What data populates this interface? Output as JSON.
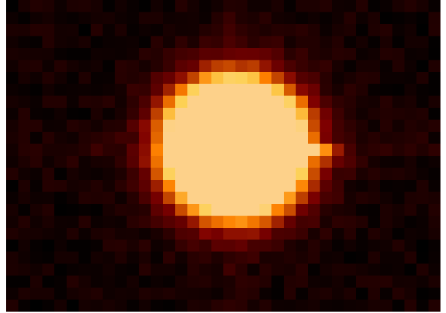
{
  "image": {
    "kind": "pixelated-heatmap",
    "colormap": "afmhot",
    "palette": {
      "background": "#ffffff",
      "dark": "#0d0402",
      "mid": "#7a1e05",
      "bright": "#ff6a00",
      "saturated": "#fdd08a"
    }
  }
}
